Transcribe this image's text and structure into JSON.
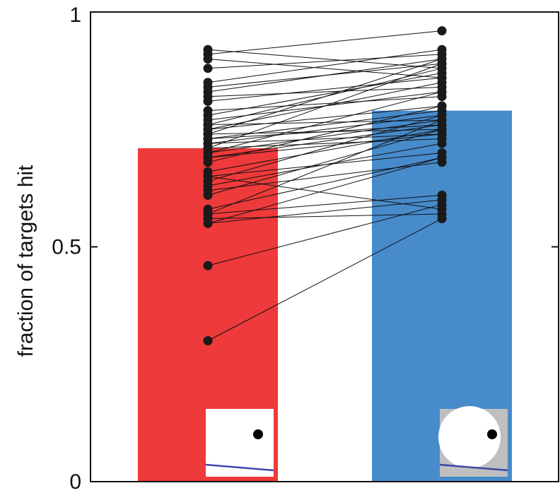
{
  "chart_data": {
    "type": "bar",
    "title": "",
    "xlabel": "",
    "ylabel": "fraction of targets hit",
    "ylim": [
      0,
      1
    ],
    "yticks": [
      {
        "value": 0,
        "label": "0"
      },
      {
        "value": 0.5,
        "label": "0.5"
      },
      {
        "value": 1,
        "label": "1"
      }
    ],
    "grid": false,
    "categories": [
      "",
      ""
    ],
    "values": [
      0.71,
      0.79
    ],
    "bar_colors": [
      "#ee3a3a",
      "#478bcb"
    ],
    "paired_points": [
      [
        0.92,
        0.88
      ],
      [
        0.91,
        0.96
      ],
      [
        0.9,
        0.86
      ],
      [
        0.88,
        0.91
      ],
      [
        0.85,
        0.92
      ],
      [
        0.84,
        0.89
      ],
      [
        0.83,
        0.9
      ],
      [
        0.82,
        0.84
      ],
      [
        0.81,
        0.86
      ],
      [
        0.79,
        0.82
      ],
      [
        0.78,
        0.87
      ],
      [
        0.77,
        0.83
      ],
      [
        0.76,
        0.88
      ],
      [
        0.76,
        0.77
      ],
      [
        0.75,
        0.8
      ],
      [
        0.75,
        0.85
      ],
      [
        0.74,
        0.75
      ],
      [
        0.74,
        0.9
      ],
      [
        0.73,
        0.76
      ],
      [
        0.73,
        0.79
      ],
      [
        0.72,
        0.78
      ],
      [
        0.72,
        0.74
      ],
      [
        0.71,
        0.89
      ],
      [
        0.71,
        0.73
      ],
      [
        0.7,
        0.77
      ],
      [
        0.7,
        0.83
      ],
      [
        0.69,
        0.76
      ],
      [
        0.69,
        0.74
      ],
      [
        0.68,
        0.8
      ],
      [
        0.66,
        0.75
      ],
      [
        0.65,
        0.7
      ],
      [
        0.65,
        0.58
      ],
      [
        0.64,
        0.78
      ],
      [
        0.63,
        0.72
      ],
      [
        0.62,
        0.68
      ],
      [
        0.61,
        0.75
      ],
      [
        0.58,
        0.69
      ],
      [
        0.57,
        0.61
      ],
      [
        0.57,
        0.77
      ],
      [
        0.56,
        0.57
      ],
      [
        0.55,
        0.6
      ],
      [
        0.55,
        0.69
      ],
      [
        0.46,
        0.59
      ],
      [
        0.3,
        0.56
      ]
    ],
    "insets": [
      {
        "background": "#ffffff",
        "circle": false,
        "dot_color": "#000000",
        "line_color": "#3b48a8"
      },
      {
        "background": "#bfbfbf",
        "circle": true,
        "circle_color": "#ffffff",
        "dot_color": "#000000",
        "line_color": "#3b48a8"
      }
    ]
  }
}
